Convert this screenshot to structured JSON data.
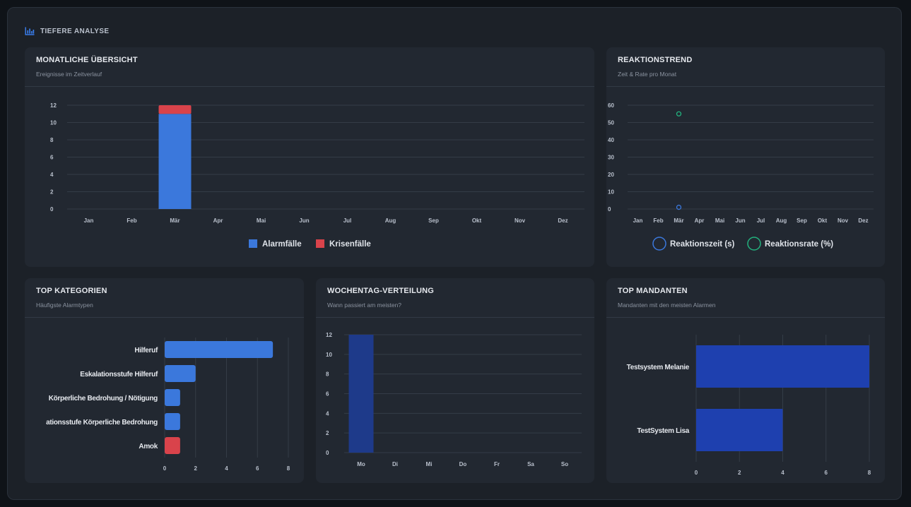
{
  "section": {
    "title": "TIEFERE ANALYSE",
    "icon": "bar-chart-icon",
    "accent": "#3b82f6"
  },
  "cards": {
    "monthly": {
      "title": "MONATLICHE ÜBERSICHT",
      "subtitle": "Ereignisse im Zeitverlauf"
    },
    "trend": {
      "title": "REAKTIONSTREND",
      "subtitle": "Zeit & Rate pro Monat"
    },
    "categories": {
      "title": "TOP KATEGORIEN",
      "subtitle": "Häufigste Alarmtypen"
    },
    "weekday": {
      "title": "WOCHENTAG-VERTEILUNG",
      "subtitle": "Wann passiert am meisten?"
    },
    "clients": {
      "title": "TOP MANDANTEN",
      "subtitle": "Mandanten mit den meisten Alarmen"
    }
  },
  "chart_data": [
    {
      "id": "monthly",
      "type": "bar",
      "stacked": true,
      "categories": [
        "Jan",
        "Feb",
        "Mär",
        "Apr",
        "Mai",
        "Jun",
        "Jul",
        "Aug",
        "Sep",
        "Okt",
        "Nov",
        "Dez"
      ],
      "series": [
        {
          "name": "Alarmfälle",
          "color": "#3b78dc",
          "values": [
            0,
            0,
            11,
            0,
            0,
            0,
            0,
            0,
            0,
            0,
            0,
            0
          ]
        },
        {
          "name": "Krisenfälle",
          "color": "#d9434b",
          "values": [
            0,
            0,
            1,
            0,
            0,
            0,
            0,
            0,
            0,
            0,
            0,
            0
          ]
        }
      ],
      "ylim": [
        0,
        12
      ],
      "yticks": [
        "0",
        "2",
        "4",
        "6",
        "8",
        "10",
        "12"
      ],
      "grid": true,
      "legend": "bottom"
    },
    {
      "id": "trend",
      "type": "line",
      "categories": [
        "Jan",
        "Feb",
        "Mär",
        "Apr",
        "Mai",
        "Jun",
        "Jul",
        "Aug",
        "Sep",
        "Okt",
        "Nov",
        "Dez"
      ],
      "series": [
        {
          "name": "Reaktionszeit (s)",
          "color": "#3b78dc",
          "values": [
            null,
            null,
            1,
            null,
            null,
            null,
            null,
            null,
            null,
            null,
            null,
            null
          ]
        },
        {
          "name": "Reaktionsrate (%)",
          "color": "#22b07d",
          "values": [
            null,
            null,
            55,
            null,
            null,
            null,
            null,
            null,
            null,
            null,
            null,
            null
          ]
        }
      ],
      "ylim": [
        0,
        60
      ],
      "yticks": [
        "0",
        "10",
        "20",
        "30",
        "40",
        "50",
        "60"
      ],
      "grid": true,
      "legend": "bottom"
    },
    {
      "id": "categories",
      "type": "bar",
      "orientation": "horizontal",
      "categories": [
        "Hilferuf",
        "Eskalationsstufe Hilferuf",
        "Körperliche Bedrohung / Nötigung",
        "ationsstufe Körperliche Bedrohung",
        "Amok"
      ],
      "values": [
        7,
        2,
        1,
        1,
        1
      ],
      "colors": [
        "#3b78dc",
        "#3b78dc",
        "#3b78dc",
        "#3b78dc",
        "#d9434b"
      ],
      "xlim": [
        0,
        8
      ],
      "xticks": [
        "0",
        "2",
        "4",
        "6",
        "8"
      ],
      "grid": true
    },
    {
      "id": "weekday",
      "type": "bar",
      "categories": [
        "Mo",
        "Di",
        "Mi",
        "Do",
        "Fr",
        "Sa",
        "So"
      ],
      "values": [
        12,
        0,
        0,
        0,
        0,
        0,
        0
      ],
      "color": "#1e3a8a",
      "ylim": [
        0,
        12
      ],
      "yticks": [
        "0",
        "2",
        "4",
        "6",
        "8",
        "10",
        "12"
      ],
      "grid": true
    },
    {
      "id": "clients",
      "type": "bar",
      "orientation": "horizontal",
      "categories": [
        "Testsystem Melanie",
        "TestSystem Lisa"
      ],
      "values": [
        8,
        4
      ],
      "color": "#1e40af",
      "xlim": [
        0,
        8
      ],
      "xticks": [
        "0",
        "2",
        "4",
        "6",
        "8"
      ],
      "grid": true
    }
  ]
}
